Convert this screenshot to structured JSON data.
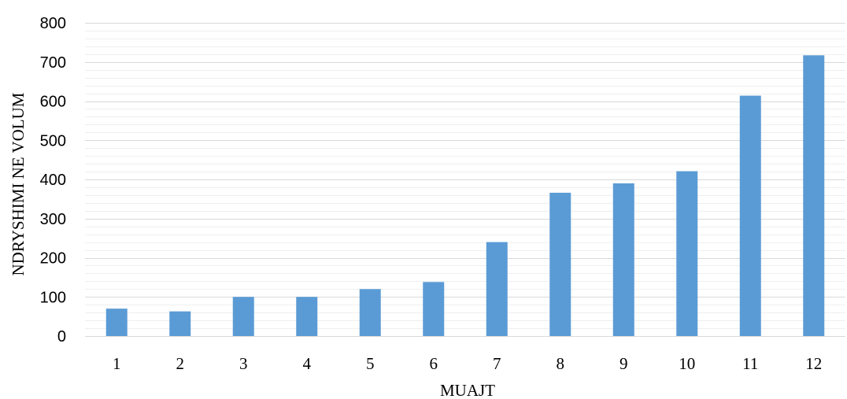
{
  "chart_data": {
    "type": "bar",
    "title": "",
    "xlabel": "MUAJT",
    "ylabel": "NDRYSHIMI NE VOLUM",
    "categories": [
      "1",
      "2",
      "3",
      "4",
      "5",
      "6",
      "7",
      "8",
      "9",
      "10",
      "11",
      "12"
    ],
    "values": [
      70,
      63,
      100,
      100,
      120,
      138,
      240,
      366,
      390,
      421,
      614,
      717
    ],
    "ylim": [
      0,
      800
    ],
    "yticks": [
      0,
      100,
      200,
      300,
      400,
      500,
      600,
      700,
      800
    ],
    "major_grid": true,
    "minor_grid": true,
    "minor_step": 20,
    "legend": "none",
    "bar_color": "#5B9BD5",
    "major_grid_color": "#D9D9D9",
    "minor_grid_color": "#EFEFEF",
    "axis_color": "#D9D9D9"
  }
}
